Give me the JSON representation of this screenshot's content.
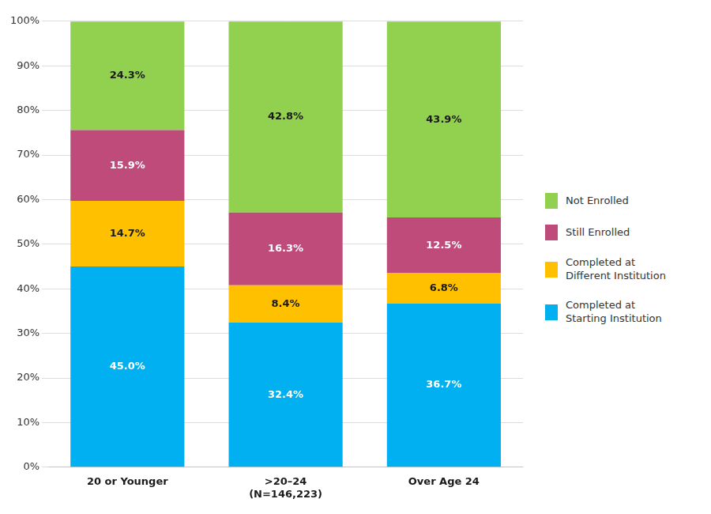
{
  "chart_data": {
    "type": "bar",
    "stacked": true,
    "categories": [
      "20 or Younger",
      ">20–24\n(N=146,223)",
      "Over Age 24"
    ],
    "series": [
      {
        "name": "Completed at\nStarting Institution",
        "color": "#00B0F0",
        "values": [
          45.0,
          32.4,
          36.7
        ],
        "value_labels": [
          "45.0%",
          "32.4%",
          "36.7%"
        ]
      },
      {
        "name": "Completed at\nDifferent Institution",
        "color": "#FFC000",
        "values": [
          14.7,
          8.4,
          6.8
        ],
        "value_labels": [
          "14.7%",
          "8.4%",
          "6.8%"
        ]
      },
      {
        "name": "Still Enrolled",
        "color": "#BE4B7A",
        "values": [
          15.9,
          16.3,
          12.5
        ],
        "value_labels": [
          "15.9%",
          "16.3%",
          "12.5%"
        ]
      },
      {
        "name": "Not Enrolled",
        "color": "#92D050",
        "values": [
          24.3,
          42.8,
          43.9
        ],
        "value_labels": [
          "24.3%",
          "42.8%",
          "43.9%"
        ]
      }
    ],
    "ylim": [
      0,
      100
    ],
    "yticks": [
      {
        "value": 0,
        "label": "0%"
      },
      {
        "value": 10,
        "label": "10%"
      },
      {
        "value": 20,
        "label": "20%"
      },
      {
        "value": 30,
        "label": "30%"
      },
      {
        "value": 40,
        "label": "40%"
      },
      {
        "value": 50,
        "label": "50%"
      },
      {
        "value": 60,
        "label": "60%"
      },
      {
        "value": 70,
        "label": "70%"
      },
      {
        "value": 80,
        "label": "80%"
      },
      {
        "value": 90,
        "label": "90%"
      },
      {
        "value": 100,
        "label": "100%"
      }
    ],
    "grid": true,
    "legend": "right",
    "data_labels": true
  }
}
